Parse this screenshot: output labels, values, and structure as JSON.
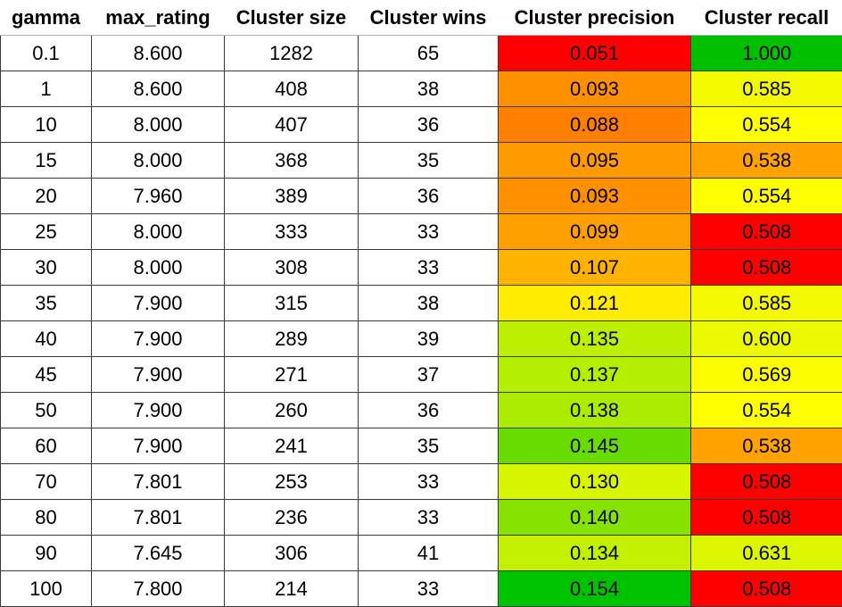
{
  "table": {
    "headers": [
      "gamma",
      "max_rating",
      "Cluster size",
      "Cluster wins",
      "Cluster precision",
      "Cluster recall"
    ],
    "rows": [
      [
        "0.1",
        "8.600",
        "1282",
        "65",
        "0.051",
        "1.000"
      ],
      [
        "1",
        "8.600",
        "408",
        "38",
        "0.093",
        "0.585"
      ],
      [
        "10",
        "8.000",
        "407",
        "36",
        "0.088",
        "0.554"
      ],
      [
        "15",
        "8.000",
        "368",
        "35",
        "0.095",
        "0.538"
      ],
      [
        "20",
        "7.960",
        "389",
        "36",
        "0.093",
        "0.554"
      ],
      [
        "25",
        "8.000",
        "333",
        "33",
        "0.099",
        "0.508"
      ],
      [
        "30",
        "8.000",
        "308",
        "33",
        "0.107",
        "0.508"
      ],
      [
        "35",
        "7.900",
        "315",
        "38",
        "0.121",
        "0.585"
      ],
      [
        "40",
        "7.900",
        "289",
        "39",
        "0.135",
        "0.600"
      ],
      [
        "45",
        "7.900",
        "271",
        "37",
        "0.137",
        "0.569"
      ],
      [
        "50",
        "7.900",
        "260",
        "36",
        "0.138",
        "0.554"
      ],
      [
        "60",
        "7.900",
        "241",
        "35",
        "0.145",
        "0.538"
      ],
      [
        "70",
        "7.801",
        "253",
        "33",
        "0.130",
        "0.508"
      ],
      [
        "80",
        "7.801",
        "236",
        "33",
        "0.140",
        "0.508"
      ],
      [
        "90",
        "7.645",
        "306",
        "41",
        "0.134",
        "0.631"
      ],
      [
        "100",
        "7.800",
        "214",
        "33",
        "0.154",
        "0.508"
      ]
    ],
    "precision_colors": [
      "#ff0000",
      "#ff9100",
      "#ff7f00",
      "#ff9a00",
      "#ff9100",
      "#ffa000",
      "#ffb300",
      "#ffec00",
      "#bdf000",
      "#b4ef00",
      "#acec00",
      "#66dc00",
      "#d8f500",
      "#86e200",
      "#c2f000",
      "#00c300"
    ],
    "recall_colors": [
      "#00c000",
      "#f4fb00",
      "#ffff00",
      "#ffa200",
      "#ffff00",
      "#ff0000",
      "#ff0000",
      "#f4fb00",
      "#ecfa00",
      "#fbfd00",
      "#ffff00",
      "#ffa200",
      "#ff0000",
      "#ff0000",
      "#dcf700",
      "#ff0000"
    ]
  }
}
